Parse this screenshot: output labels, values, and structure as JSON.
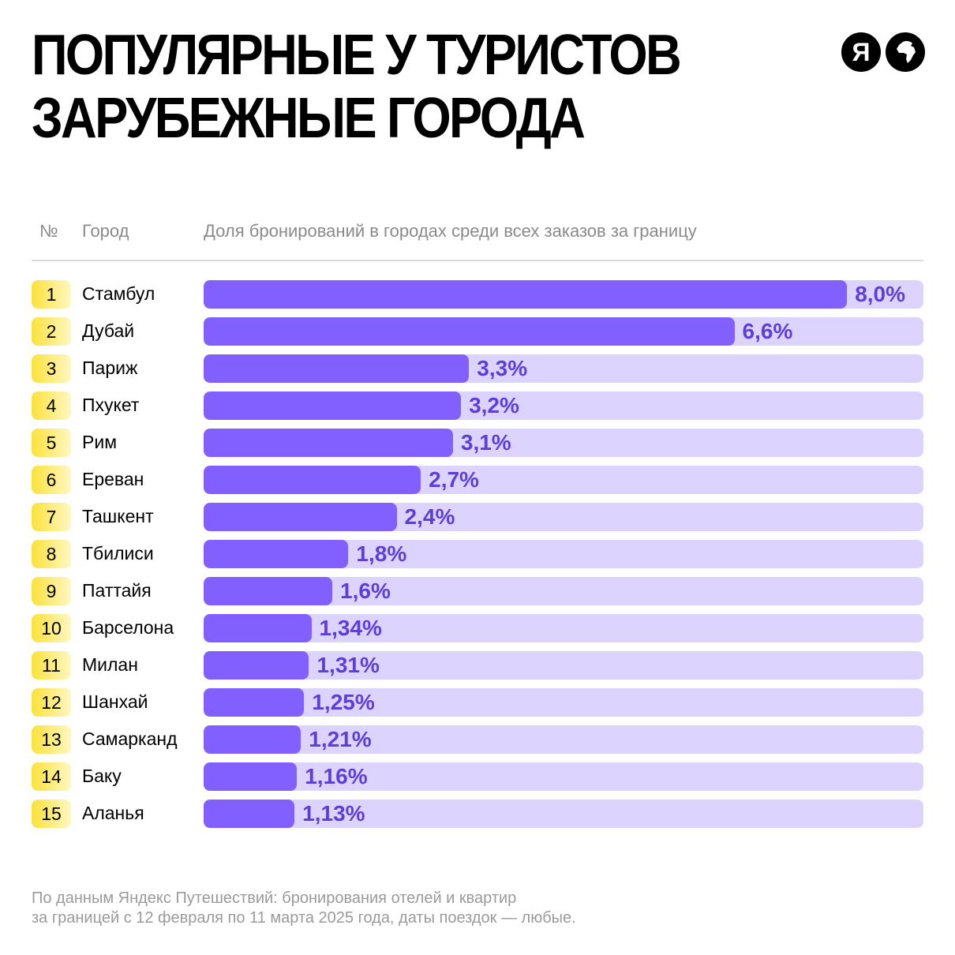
{
  "title_lines": [
    "ПОПУЛЯРНЫЕ У ТУРИСТОВ",
    "ЗАРУБЕЖНЫЕ ГОРОДА"
  ],
  "logos": {
    "yandex_letter": "Я",
    "globe": "globe-icon"
  },
  "header": {
    "rank": "№",
    "city": "Город",
    "share": "Доля бронирований в городах среди всех заказов за границу"
  },
  "colors": {
    "fill": "#8160ff",
    "track": "#dcd3ff",
    "value": "#5d3fd8",
    "badge": "#fbe23a"
  },
  "chart_data": {
    "type": "bar",
    "orientation": "horizontal",
    "title": "ПОПУЛЯРНЫЕ У ТУРИСТОВ ЗАРУБЕЖНЫЕ ГОРОДА",
    "xlabel": "Доля бронирований в городах среди всех заказов за границу",
    "unit": "%",
    "ranks": [
      "1",
      "2",
      "3",
      "4",
      "5",
      "6",
      "7",
      "8",
      "9",
      "10",
      "11",
      "12",
      "13",
      "14",
      "15"
    ],
    "categories": [
      "Стамбул",
      "Дубай",
      "Париж",
      "Пхукет",
      "Рим",
      "Ереван",
      "Ташкент",
      "Тбилиси",
      "Паттайя",
      "Барселона",
      "Милан",
      "Шанхай",
      "Самарканд",
      "Баку",
      "Аланья"
    ],
    "values": [
      8.0,
      6.6,
      3.3,
      3.2,
      3.1,
      2.7,
      2.4,
      1.8,
      1.6,
      1.34,
      1.31,
      1.25,
      1.21,
      1.16,
      1.13
    ],
    "labels": [
      "8,0%",
      "6,6%",
      "3,3%",
      "3,2%",
      "3,1%",
      "2,7%",
      "2,4%",
      "1,8%",
      "1,6%",
      "1,34%",
      "1,31%",
      "1,25%",
      "1,21%",
      "1,16%",
      "1,13%"
    ],
    "xlim": [
      0,
      8.95
    ]
  },
  "footnote": [
    "По данным Яндекс Путешествий: бронирования отелей и квартир",
    "за границей с 12 февраля по 11 марта 2025 года, даты поездок — любые."
  ]
}
